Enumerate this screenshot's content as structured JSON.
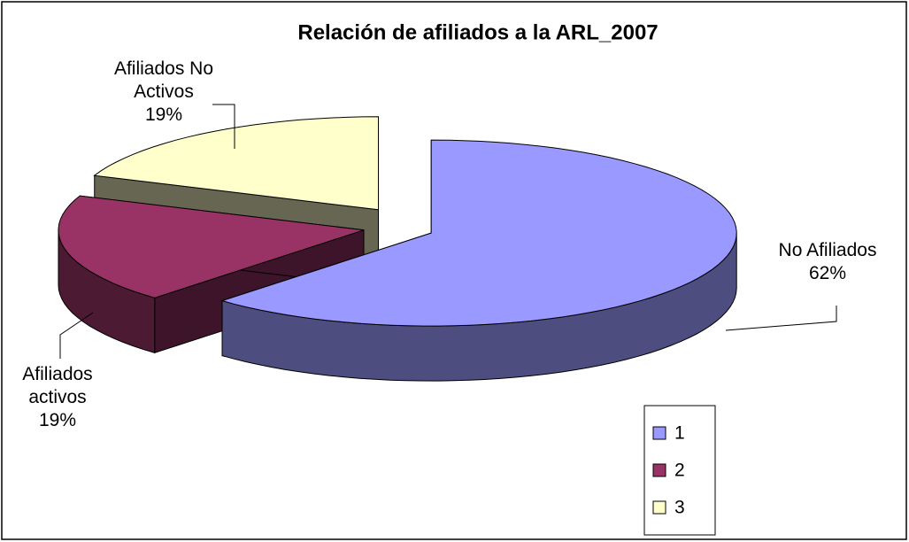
{
  "chart_data": {
    "type": "pie3d",
    "title": "Relación de afiliados a la ARL_2007",
    "categories": [
      "No Afiliados",
      "Afiliados activos",
      "Afiliados No Activos"
    ],
    "values": [
      62,
      19,
      19
    ],
    "value_labels": [
      "62%",
      "19%",
      "19%"
    ],
    "colors": [
      "#9999ff",
      "#993366",
      "#ffffcc"
    ],
    "legend": [
      "1",
      "2",
      "3"
    ],
    "legend_position": "bottom-right"
  }
}
